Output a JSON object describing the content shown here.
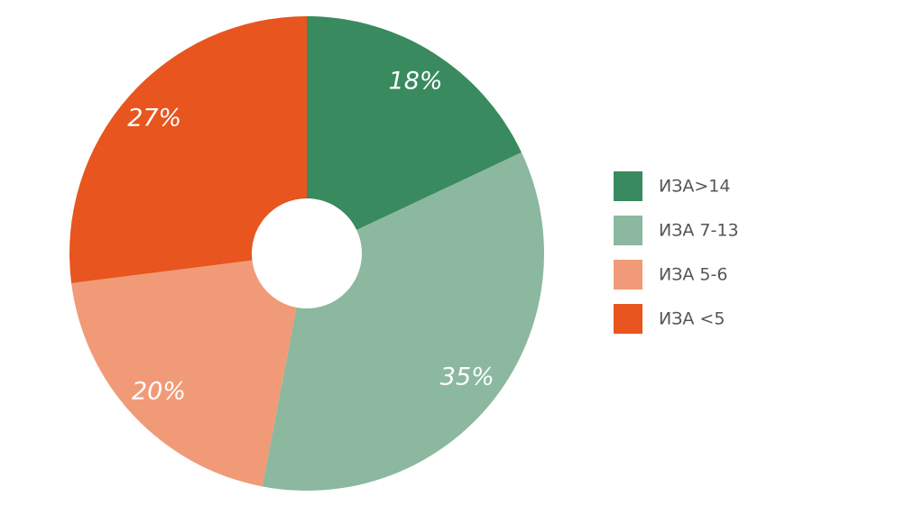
{
  "chart_data": {
    "type": "pie",
    "categories": [
      "ИЗА>14",
      "ИЗА 7-13",
      "ИЗА 5-6",
      "ИЗА <5"
    ],
    "values": [
      18,
      35,
      20,
      27
    ],
    "value_labels": [
      "18%",
      "35%",
      "20%",
      "27%"
    ],
    "colors": [
      "#3a8a5f",
      "#8bb89e",
      "#f19a78",
      "#e8551e"
    ],
    "legend": "right"
  }
}
